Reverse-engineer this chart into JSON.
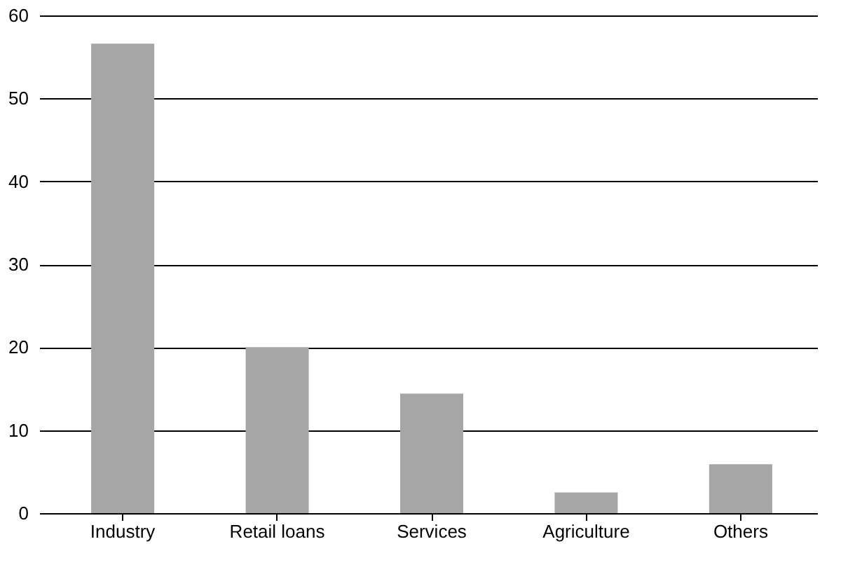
{
  "chart_data": {
    "type": "bar",
    "categories": [
      "Industry",
      "Retail loans",
      "Services",
      "Agriculture",
      "Others"
    ],
    "values": [
      56.6,
      20.0,
      14.4,
      2.5,
      5.9
    ],
    "color": "#a6a6a6",
    "ylim": [
      0,
      60
    ],
    "yticks": [
      0,
      10,
      20,
      30,
      40,
      50,
      60
    ],
    "grid": "y"
  }
}
